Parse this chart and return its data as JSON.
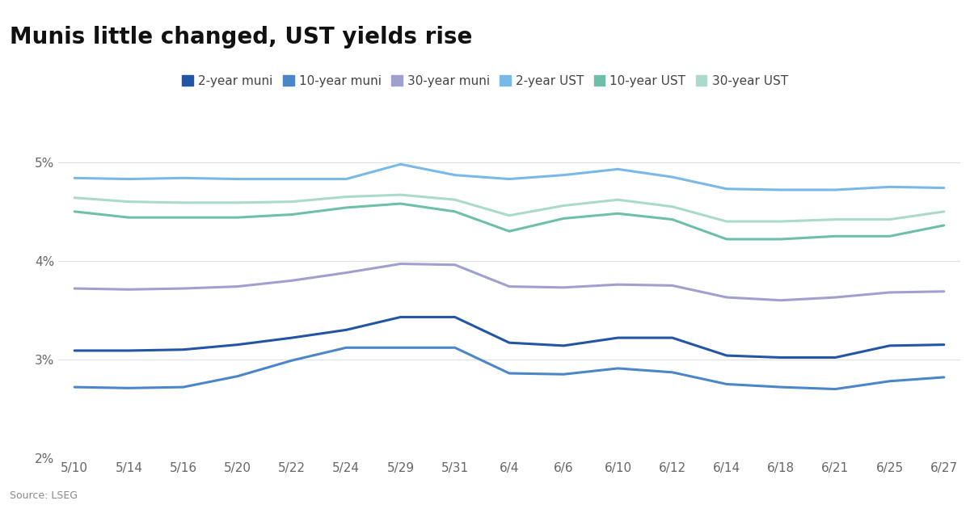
{
  "title": "Munis little changed, UST yields rise",
  "source": "Source: LSEG",
  "x_labels": [
    "5/10",
    "5/14",
    "5/16",
    "5/20",
    "5/22",
    "5/24",
    "5/29",
    "5/31",
    "6/4",
    "6/6",
    "6/10",
    "6/12",
    "6/14",
    "6/18",
    "6/21",
    "6/25",
    "6/27"
  ],
  "series": {
    "2-year muni": {
      "color": "#2255a4",
      "linewidth": 2.2,
      "values": [
        3.09,
        3.09,
        3.1,
        3.15,
        3.22,
        3.3,
        3.43,
        3.43,
        3.17,
        3.14,
        3.22,
        3.22,
        3.04,
        3.02,
        3.02,
        3.14,
        3.15
      ]
    },
    "10-year muni": {
      "color": "#4a86c8",
      "linewidth": 2.2,
      "values": [
        2.72,
        2.71,
        2.72,
        2.83,
        2.99,
        3.12,
        3.12,
        3.12,
        2.86,
        2.85,
        2.91,
        2.87,
        2.75,
        2.72,
        2.7,
        2.78,
        2.82
      ]
    },
    "30-year muni": {
      "color": "#a0a0d0",
      "linewidth": 2.2,
      "values": [
        3.72,
        3.71,
        3.72,
        3.74,
        3.8,
        3.88,
        3.97,
        3.96,
        3.74,
        3.73,
        3.76,
        3.75,
        3.63,
        3.6,
        3.63,
        3.68,
        3.69
      ]
    },
    "2-year UST": {
      "color": "#7ab8e8",
      "linewidth": 2.2,
      "values": [
        4.84,
        4.83,
        4.84,
        4.83,
        4.83,
        4.83,
        4.98,
        4.87,
        4.83,
        4.87,
        4.93,
        4.85,
        4.73,
        4.72,
        4.72,
        4.75,
        4.74
      ]
    },
    "10-year UST": {
      "color": "#6dbfaa",
      "linewidth": 2.2,
      "values": [
        4.5,
        4.44,
        4.44,
        4.44,
        4.47,
        4.54,
        4.58,
        4.5,
        4.3,
        4.43,
        4.48,
        4.42,
        4.22,
        4.22,
        4.25,
        4.25,
        4.36
      ]
    },
    "30-year UST": {
      "color": "#aadacb",
      "linewidth": 2.2,
      "values": [
        4.64,
        4.6,
        4.59,
        4.59,
        4.6,
        4.65,
        4.67,
        4.62,
        4.46,
        4.56,
        4.62,
        4.55,
        4.4,
        4.4,
        4.42,
        4.42,
        4.5
      ]
    }
  },
  "ylim": [
    2.0,
    5.2
  ],
  "yticks": [
    2.0,
    3.0,
    4.0,
    5.0
  ],
  "ytick_labels": [
    "2%",
    "3%",
    "4%",
    "5%"
  ],
  "background_color": "#ffffff",
  "grid_color": "#e0e0e0",
  "title_fontsize": 20,
  "legend_fontsize": 11,
  "tick_fontsize": 11
}
